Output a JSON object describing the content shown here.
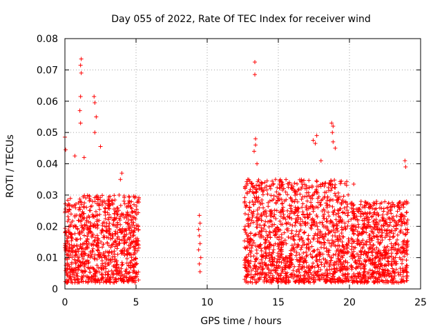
{
  "chart_data": {
    "type": "scatter",
    "title": "Day 055 of 2022, Rate Of TEC Index for receiver wind",
    "xlabel": "GPS time / hours",
    "ylabel": "ROTI / TECUs",
    "xlim": [
      0,
      25
    ],
    "ylim": [
      0,
      0.08
    ],
    "x_ticks": [
      "0",
      "5",
      "10",
      "15",
      "20",
      "25"
    ],
    "y_ticks": [
      "0",
      "0.01",
      "0.02",
      "0.03",
      "0.04",
      "0.05",
      "0.06",
      "0.07",
      "0.08"
    ],
    "grid": true,
    "marker": "+",
    "color": "#ff0000",
    "dense_regions": [
      {
        "x": [
          0.0,
          5.2
        ],
        "y": [
          0.002,
          0.03
        ]
      },
      {
        "x": [
          12.6,
          20.0
        ],
        "y": [
          0.002,
          0.035
        ]
      },
      {
        "x": [
          20.1,
          24.1
        ],
        "y": [
          0.002,
          0.028
        ]
      }
    ],
    "notable_points": [
      {
        "x": 1.15,
        "y": 0.0735
      },
      {
        "x": 1.1,
        "y": 0.0715
      },
      {
        "x": 1.15,
        "y": 0.069
      },
      {
        "x": 1.1,
        "y": 0.0615
      },
      {
        "x": 1.05,
        "y": 0.057
      },
      {
        "x": 1.1,
        "y": 0.053
      },
      {
        "x": 2.05,
        "y": 0.0615
      },
      {
        "x": 2.1,
        "y": 0.0595
      },
      {
        "x": 2.2,
        "y": 0.055
      },
      {
        "x": 2.1,
        "y": 0.05
      },
      {
        "x": 2.5,
        "y": 0.0455
      },
      {
        "x": 0.0,
        "y": 0.0485
      },
      {
        "x": 0.05,
        "y": 0.0445
      },
      {
        "x": 1.35,
        "y": 0.042
      },
      {
        "x": 0.7,
        "y": 0.0425
      },
      {
        "x": 4.0,
        "y": 0.037
      },
      {
        "x": 3.9,
        "y": 0.035
      },
      {
        "x": 9.45,
        "y": 0.0235
      },
      {
        "x": 9.5,
        "y": 0.021
      },
      {
        "x": 9.4,
        "y": 0.019
      },
      {
        "x": 9.45,
        "y": 0.017
      },
      {
        "x": 9.5,
        "y": 0.0145
      },
      {
        "x": 9.4,
        "y": 0.0125
      },
      {
        "x": 9.55,
        "y": 0.01
      },
      {
        "x": 9.45,
        "y": 0.008
      },
      {
        "x": 9.5,
        "y": 0.0055
      },
      {
        "x": 13.35,
        "y": 0.0725
      },
      {
        "x": 13.35,
        "y": 0.0685
      },
      {
        "x": 13.4,
        "y": 0.048
      },
      {
        "x": 13.4,
        "y": 0.046
      },
      {
        "x": 13.3,
        "y": 0.044
      },
      {
        "x": 13.5,
        "y": 0.04
      },
      {
        "x": 18.75,
        "y": 0.053
      },
      {
        "x": 18.85,
        "y": 0.052
      },
      {
        "x": 18.8,
        "y": 0.05
      },
      {
        "x": 17.7,
        "y": 0.049
      },
      {
        "x": 17.45,
        "y": 0.0475
      },
      {
        "x": 18.85,
        "y": 0.047
      },
      {
        "x": 17.6,
        "y": 0.0465
      },
      {
        "x": 19.0,
        "y": 0.045
      },
      {
        "x": 18.0,
        "y": 0.041
      },
      {
        "x": 23.9,
        "y": 0.041
      },
      {
        "x": 23.95,
        "y": 0.039
      },
      {
        "x": 20.3,
        "y": 0.0335
      },
      {
        "x": 21.9,
        "y": 0.028
      }
    ]
  }
}
